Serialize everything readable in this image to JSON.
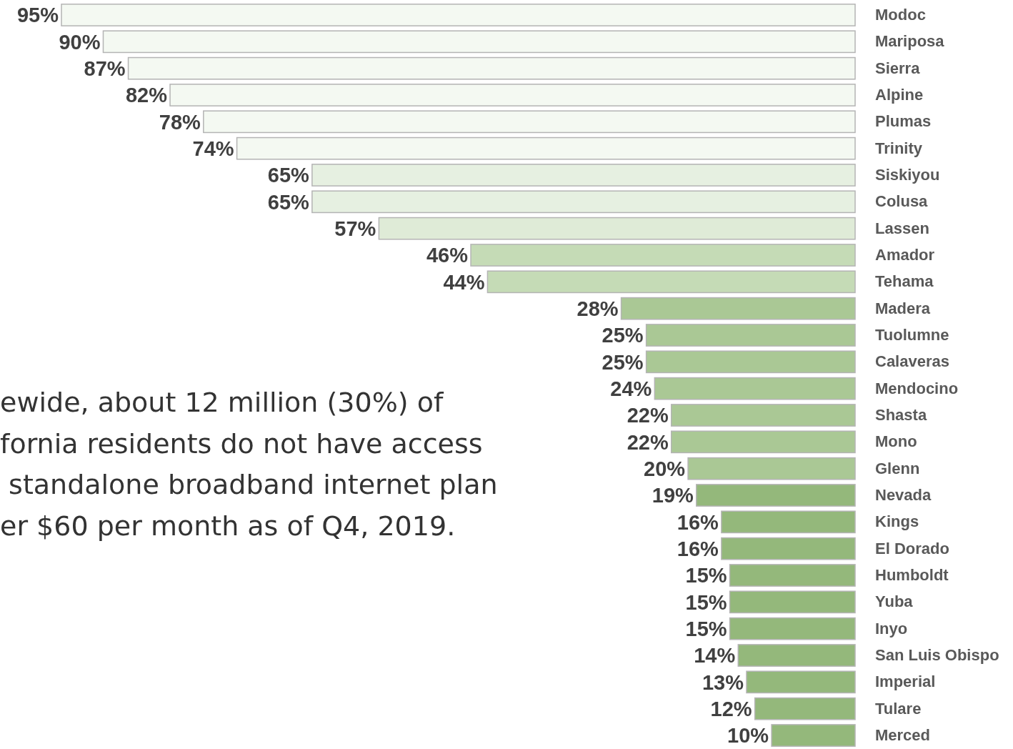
{
  "chart_data": {
    "type": "bar",
    "orientation": "horizontal",
    "categories": [
      "Modoc",
      "Mariposa",
      "Sierra",
      "Alpine",
      "Plumas",
      "Trinity",
      "Siskiyou",
      "Colusa",
      "Lassen",
      "Amador",
      "Tehama",
      "Madera",
      "Tuolumne",
      "Calaveras",
      "Mendocino",
      "Shasta",
      "Mono",
      "Glenn",
      "Nevada",
      "Kings",
      "El Dorado",
      "Humboldt",
      "Yuba",
      "Inyo",
      "San Luis Obispo",
      "Imperial",
      "Tulare",
      "Merced"
    ],
    "values": [
      95,
      90,
      87,
      82,
      78,
      74,
      65,
      65,
      57,
      46,
      44,
      28,
      25,
      25,
      24,
      22,
      22,
      20,
      19,
      16,
      16,
      15,
      15,
      15,
      14,
      13,
      12,
      10
    ],
    "value_labels": [
      "95%",
      "90%",
      "87%",
      "82%",
      "78%",
      "74%",
      "65%",
      "65%",
      "57%",
      "46%",
      "44%",
      "28%",
      "25%",
      "25%",
      "24%",
      "22%",
      "22%",
      "20%",
      "19%",
      "16%",
      "16%",
      "15%",
      "15%",
      "15%",
      "14%",
      "13%",
      "12%",
      "10%"
    ],
    "colors": [
      "#f4f9f2",
      "#f4f9f2",
      "#f4f9f2",
      "#f4f9f2",
      "#f4f9f2",
      "#f4f9f2",
      "#e6f0e1",
      "#e6f0e1",
      "#dfebd7",
      "#c5dbb6",
      "#c5dbb6",
      "#aac895",
      "#aac895",
      "#aac895",
      "#aac895",
      "#aac895",
      "#aac895",
      "#aac895",
      "#94b87b",
      "#94b87b",
      "#94b87b",
      "#94b87b",
      "#94b87b",
      "#94b87b",
      "#94b87b",
      "#94b87b",
      "#94b87b",
      "#94b87b"
    ],
    "annotations": [
      "ewide, about 12 million (30%) of",
      "fornia residents do not have access",
      " standalone broadband internet plan",
      "er $60 per month as of Q4, 2019."
    ]
  }
}
